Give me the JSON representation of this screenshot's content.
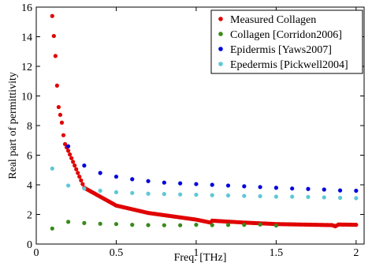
{
  "chart_data": {
    "type": "scatter",
    "xlabel": "Freq. [THz]",
    "ylabel": "Real part of permittivity",
    "xlim": [
      0,
      2.05
    ],
    "ylim": [
      0,
      16
    ],
    "xticks": [
      0,
      0.5,
      1,
      1.5,
      2
    ],
    "xtick_labels": [
      "0",
      "0.5",
      "1",
      "1.5",
      "2"
    ],
    "yticks": [
      0,
      2,
      4,
      6,
      8,
      10,
      12,
      14,
      16
    ],
    "ytick_labels": [
      "0",
      "2",
      "4",
      "6",
      "8",
      "10",
      "12",
      "14",
      "16"
    ],
    "grid": false,
    "legend_position": "top-right",
    "series": [
      {
        "name": "Measured Collagen",
        "color": "#e00000",
        "model": "measured",
        "x_range": [
          0.1,
          2.0
        ],
        "x_step": 0.01,
        "points": [
          [
            0.1,
            15.4
          ],
          [
            0.12,
            12.7
          ],
          [
            0.13,
            10.7
          ],
          [
            0.14,
            9.25
          ],
          [
            0.16,
            8.2
          ],
          [
            0.17,
            7.35
          ],
          [
            0.18,
            6.75
          ],
          [
            0.2,
            6.3
          ],
          [
            0.3,
            3.8
          ],
          [
            0.5,
            2.6
          ],
          [
            0.7,
            2.1
          ],
          [
            1.0,
            1.65
          ],
          [
            1.09,
            1.45
          ],
          [
            1.1,
            1.58
          ],
          [
            1.3,
            1.45
          ],
          [
            1.5,
            1.35
          ],
          [
            1.85,
            1.28
          ],
          [
            1.87,
            1.2
          ],
          [
            1.89,
            1.32
          ],
          [
            2.0,
            1.3
          ]
        ]
      },
      {
        "name": "Collagen [Corridon2006]",
        "color": "#3a8a1a",
        "x": [
          0.1,
          0.2,
          0.3,
          0.4,
          0.5,
          0.6,
          0.7,
          0.8,
          0.9,
          1.0,
          1.1,
          1.2,
          1.3,
          1.4,
          1.5
        ],
        "y": [
          1.05,
          1.5,
          1.42,
          1.37,
          1.35,
          1.3,
          1.28,
          1.27,
          1.27,
          1.3,
          1.28,
          1.29,
          1.3,
          1.32,
          1.25
        ]
      },
      {
        "name": "Epidermis [Yaws2007]",
        "color": "#0000e0",
        "x": [
          0.2,
          0.3,
          0.4,
          0.5,
          0.6,
          0.7,
          0.8,
          0.9,
          1.0,
          1.1,
          1.2,
          1.3,
          1.4,
          1.5,
          1.6,
          1.7,
          1.8,
          1.9,
          2.0
        ],
        "y": [
          6.6,
          5.3,
          4.8,
          4.55,
          4.38,
          4.25,
          4.15,
          4.1,
          4.05,
          4.0,
          3.95,
          3.9,
          3.85,
          3.8,
          3.75,
          3.72,
          3.68,
          3.62,
          3.6
        ]
      },
      {
        "name": "Epedermis [Pickwell2004]",
        "color": "#5cc8d8",
        "x": [
          0.1,
          0.2,
          0.3,
          0.4,
          0.5,
          0.6,
          0.7,
          0.8,
          0.9,
          1.0,
          1.1,
          1.2,
          1.3,
          1.4,
          1.5,
          1.6,
          1.7,
          1.8,
          1.9,
          2.0
        ],
        "y": [
          5.1,
          3.95,
          3.75,
          3.6,
          3.5,
          3.45,
          3.4,
          3.38,
          3.35,
          3.33,
          3.3,
          3.28,
          3.25,
          3.23,
          3.2,
          3.2,
          3.18,
          3.15,
          3.12,
          3.1
        ]
      }
    ]
  }
}
